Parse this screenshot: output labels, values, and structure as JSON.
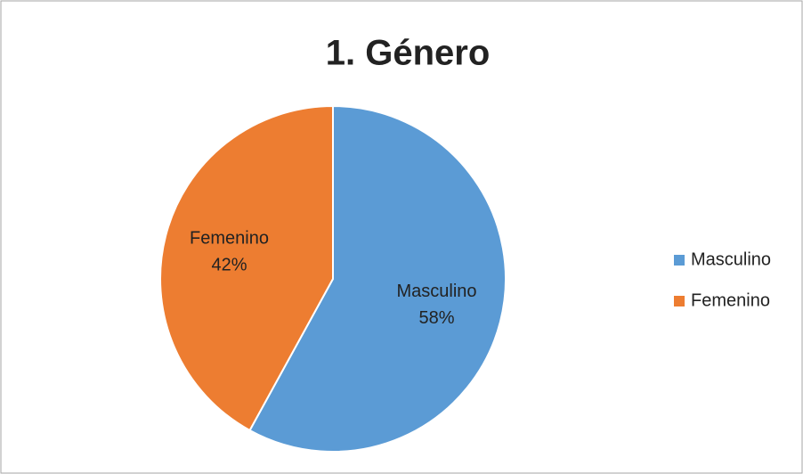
{
  "chart_data": {
    "type": "pie",
    "title": "1. Género",
    "categories": [
      "Masculino",
      "Femenino"
    ],
    "values": [
      58,
      42
    ],
    "value_labels": [
      "58%",
      "42%"
    ],
    "colors": [
      "#5b9bd5",
      "#ed7d31"
    ],
    "legend": "right"
  }
}
